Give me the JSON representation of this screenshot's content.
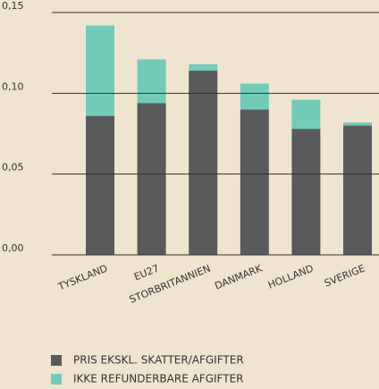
{
  "chart_data": {
    "type": "stacked_bar",
    "categories": [
      "TYSKLAND",
      "EU27",
      "STORBRITANNIEN",
      "DANMARK",
      "HOLLAND",
      "SVERIGE"
    ],
    "series": [
      {
        "name": "PRIS EKSKL. SKATTER/AFGIFTER",
        "color": "#5a595c",
        "values": [
          0.086,
          0.094,
          0.114,
          0.09,
          0.078,
          0.08
        ]
      },
      {
        "name": "IKKE REFUNDERBARE AFGIFTER",
        "color": "#72cbb9",
        "values": [
          0.056,
          0.027,
          0.004,
          0.016,
          0.018,
          0.002
        ]
      }
    ],
    "ylim": [
      0,
      0.15
    ],
    "yticks": [
      {
        "value": 0,
        "label": "0,00"
      },
      {
        "value": 0.05,
        "label": "0,05"
      },
      {
        "value": 0.1,
        "label": "0,10"
      },
      {
        "value": 0.15,
        "label": "0,15"
      }
    ],
    "grid": true,
    "legend": "bottom"
  }
}
